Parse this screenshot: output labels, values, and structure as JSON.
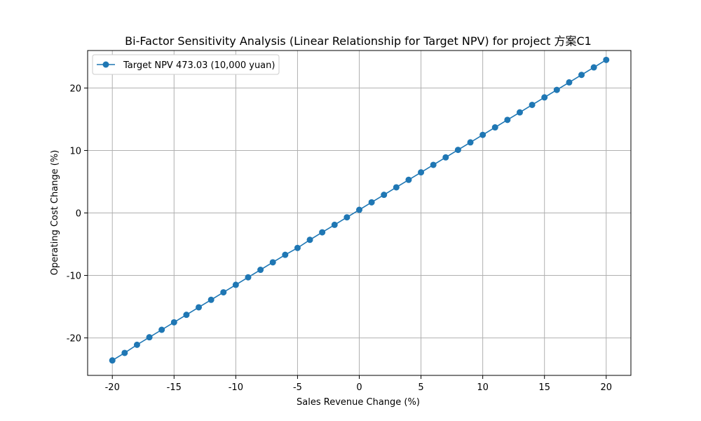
{
  "chart_data": {
    "type": "line",
    "title": "Bi-Factor Sensitivity Analysis (Linear Relationship for Target NPV) for project 方案C1",
    "xlabel": "Sales Revenue Change (%)",
    "ylabel": "Operating Cost Change (%)",
    "xlim": [
      -22,
      22
    ],
    "ylim": [
      -26,
      26
    ],
    "x_ticks": [
      -20,
      -15,
      -10,
      -5,
      0,
      5,
      10,
      15,
      20
    ],
    "y_ticks": [
      -20,
      -10,
      0,
      10,
      20
    ],
    "x_tick_labels": [
      "-20",
      "-15",
      "-10",
      "-5",
      "0",
      "5",
      "10",
      "15",
      "20"
    ],
    "y_tick_labels": [
      "-20",
      "-10",
      "0",
      "10",
      "20"
    ],
    "grid": true,
    "legend_position": "top-left",
    "series": [
      {
        "name": "Target NPV 473.03 (10,000 yuan)",
        "color": "#1f77b4",
        "marker": "circle",
        "x": [
          -20,
          -19,
          -18,
          -17,
          -16,
          -15,
          -14,
          -13,
          -12,
          -11,
          -10,
          -9,
          -8,
          -7,
          -6,
          -5,
          -4,
          -3,
          -2,
          -1,
          0,
          1,
          2,
          3,
          4,
          5,
          6,
          7,
          8,
          9,
          10,
          11,
          12,
          13,
          14,
          15,
          16,
          17,
          18,
          19,
          20
        ],
        "y": [
          -23.6,
          -22.4,
          -21.1,
          -19.9,
          -18.7,
          -17.5,
          -16.3,
          -15.1,
          -13.9,
          -12.7,
          -11.5,
          -10.3,
          -9.1,
          -7.9,
          -6.7,
          -5.6,
          -4.3,
          -3.1,
          -1.9,
          -0.7,
          0.5,
          1.7,
          2.9,
          4.1,
          5.3,
          6.5,
          7.7,
          8.9,
          10.1,
          11.3,
          12.5,
          13.7,
          14.9,
          16.1,
          17.3,
          18.5,
          19.7,
          20.9,
          22.1,
          23.3,
          24.5
        ]
      }
    ]
  }
}
